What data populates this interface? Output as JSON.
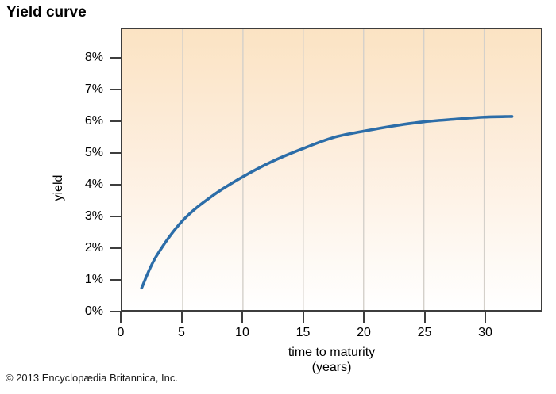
{
  "page": {
    "title": "Yield curve",
    "copyright": "© 2013 Encyclopædia Britannica, Inc."
  },
  "colors": {
    "curve": "#2c6da8",
    "axis": "#3d3d3d",
    "gridline": "#d4d0ca",
    "text": "#000000",
    "plot_gradient_top": "#fbe3c3",
    "plot_gradient_mid": "#fdeede",
    "plot_gradient_bottom": "#ffffff"
  },
  "chart_data": {
    "type": "line",
    "title": "Yield curve",
    "xlabel": "time to maturity",
    "xlabel_sub": "(years)",
    "ylabel": "yield",
    "xlim": [
      0,
      34.7
    ],
    "ylim": [
      0,
      8.95
    ],
    "grid": "vertical-only",
    "legend": "none",
    "grid_x": [
      5,
      10,
      15,
      20,
      25,
      30
    ],
    "x_ticks": [
      {
        "v": 0,
        "label": "0"
      },
      {
        "v": 5,
        "label": "5"
      },
      {
        "v": 10,
        "label": "10"
      },
      {
        "v": 15,
        "label": "15"
      },
      {
        "v": 20,
        "label": "20"
      },
      {
        "v": 25,
        "label": "25"
      },
      {
        "v": 30,
        "label": "30"
      }
    ],
    "y_ticks": [
      {
        "v": 0,
        "label": "0%"
      },
      {
        "v": 1,
        "label": "1%"
      },
      {
        "v": 2,
        "label": "2%"
      },
      {
        "v": 3,
        "label": "3%"
      },
      {
        "v": 4,
        "label": "4%"
      },
      {
        "v": 5,
        "label": "5%"
      },
      {
        "v": 6,
        "label": "6%"
      },
      {
        "v": 7,
        "label": "7%"
      },
      {
        "v": 8,
        "label": "8%"
      }
    ],
    "series": [
      {
        "name": "yield",
        "color": "#2c6da8",
        "x": [
          1.6,
          2.8,
          5,
          7.5,
          10,
          12.5,
          15,
          17.5,
          20,
          22.5,
          25,
          27.5,
          30,
          32.3
        ],
        "y": [
          0.7,
          1.7,
          2.85,
          3.65,
          4.25,
          4.75,
          5.15,
          5.5,
          5.7,
          5.87,
          6.0,
          6.08,
          6.15,
          6.17
        ]
      }
    ]
  }
}
